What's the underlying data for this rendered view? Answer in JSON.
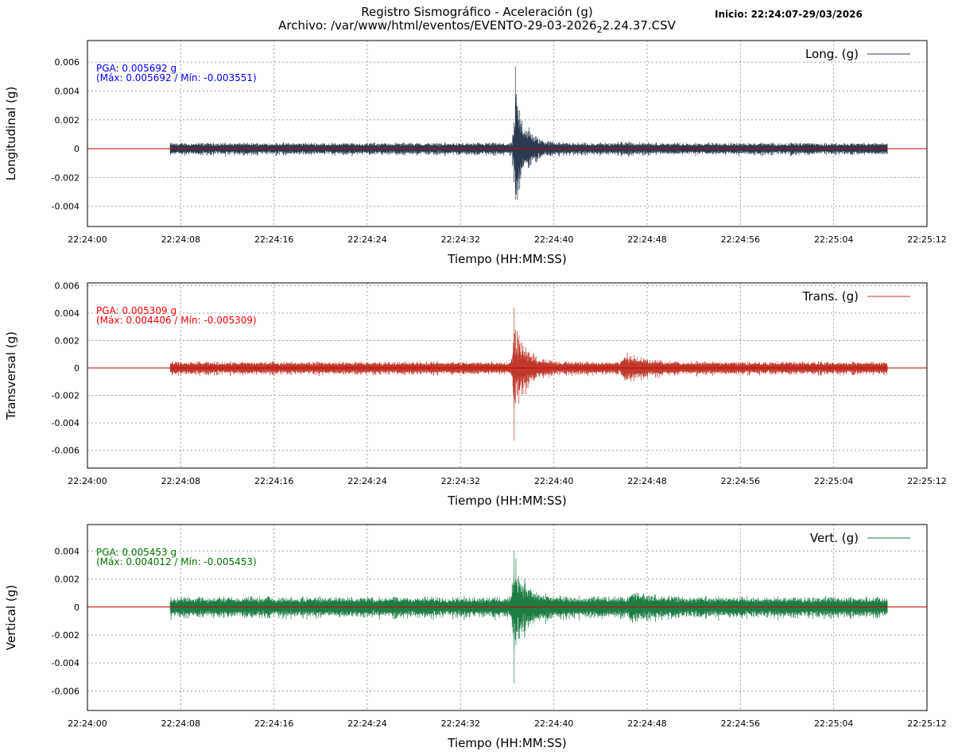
{
  "header": {
    "title": "Registro Sismográfico - Aceleración (g)",
    "subtitle_pre": "Archivo: /var/www/html/eventos/EVENTO-29-03-2026",
    "subtitle_sub": "2",
    "subtitle_post": "2.24.37.CSV",
    "start_label": "Inicio: 22:24:07-29/03/2026"
  },
  "chart_data": [
    {
      "type": "line",
      "title": "",
      "xlabel": "Tiempo (HH:MM:SS)",
      "ylabel": "Longitudinal (g)",
      "x_ticks": [
        "22:24:00",
        "22:24:08",
        "22:24:16",
        "22:24:24",
        "22:24:32",
        "22:24:40",
        "22:24:48",
        "22:24:56",
        "22:25:04",
        "22:25:12"
      ],
      "xlim": [
        0,
        72
      ],
      "ylim": [
        -0.0054,
        0.0075
      ],
      "y_ticks": [
        -0.004,
        -0.002,
        0,
        0.002,
        0.004,
        0.006
      ],
      "y_tick_labels": [
        "-0.004",
        "-0.002",
        "0",
        "0.002",
        "0.004",
        "0.006"
      ],
      "grid": true,
      "legend": "top-right",
      "series": [
        {
          "name": "Long. (g)",
          "color": "#2b3a4e",
          "x_start": 7.1,
          "x_end": 68.6,
          "baseline_amplitude": 0.00045,
          "pga": 0.005692,
          "max": 0.005692,
          "min": -0.003551,
          "events": [
            {
              "t": 36.7,
              "peak_pos": 0.005692,
              "peak_neg": -0.003551
            },
            {
              "t": 45.5,
              "peak_pos": 0.0006,
              "peak_neg": -0.0006
            }
          ]
        }
      ],
      "annotation": {
        "line1": "PGA: 0.005692 g",
        "line2": "(Máx: 0.005692 / Mín: -0.003551)",
        "color": "#0000ff"
      },
      "zero_line_color": "#cc0000"
    },
    {
      "type": "line",
      "title": "",
      "xlabel": "Tiempo (HH:MM:SS)",
      "ylabel": "Transversal (g)",
      "x_ticks": [
        "22:24:00",
        "22:24:08",
        "22:24:16",
        "22:24:24",
        "22:24:32",
        "22:24:40",
        "22:24:48",
        "22:24:56",
        "22:25:04",
        "22:25:12"
      ],
      "xlim": [
        0,
        72
      ],
      "ylim": [
        -0.0073,
        0.0062
      ],
      "y_ticks": [
        -0.006,
        -0.004,
        -0.002,
        0,
        0.002,
        0.004,
        0.006
      ],
      "y_tick_labels": [
        "-0.006",
        "-0.004",
        "-0.002",
        "0",
        "0.002",
        "0.004",
        "0.006"
      ],
      "grid": true,
      "legend": "top-right",
      "series": [
        {
          "name": "Trans. (g)",
          "color": "#c0392b",
          "x_start": 7.1,
          "x_end": 68.6,
          "baseline_amplitude": 0.0005,
          "pga": 0.005309,
          "max": 0.004406,
          "min": -0.005309,
          "events": [
            {
              "t": 36.6,
              "peak_pos": 0.004406,
              "peak_neg": -0.005309
            },
            {
              "t": 46.0,
              "peak_pos": 0.0017,
              "peak_neg": -0.0013
            }
          ]
        }
      ],
      "annotation": {
        "line1": "PGA: 0.005309 g",
        "line2": "(Máx: 0.004406 / Mín: -0.005309)",
        "color": "#ff0000"
      },
      "zero_line_color": "#cc0000"
    },
    {
      "type": "line",
      "title": "",
      "xlabel": "Tiempo (HH:MM:SS)",
      "ylabel": "Vertical (g)",
      "x_ticks": [
        "22:24:00",
        "22:24:08",
        "22:24:16",
        "22:24:24",
        "22:24:32",
        "22:24:40",
        "22:24:48",
        "22:24:56",
        "22:25:04",
        "22:25:12"
      ],
      "xlim": [
        0,
        72
      ],
      "ylim": [
        -0.0074,
        0.0059
      ],
      "y_ticks": [
        -0.006,
        -0.004,
        -0.002,
        0,
        0.002,
        0.004
      ],
      "y_tick_labels": [
        "-0.006",
        "-0.004",
        "-0.002",
        "0",
        "0.002",
        "0.004"
      ],
      "grid": true,
      "legend": "top-right",
      "series": [
        {
          "name": "Vert. (g)",
          "color": "#1e7d45",
          "x_start": 7.1,
          "x_end": 68.6,
          "baseline_amplitude": 0.0008,
          "pga": 0.005453,
          "max": 0.004012,
          "min": -0.005453,
          "events": [
            {
              "t": 36.6,
              "peak_pos": 0.004012,
              "peak_neg": -0.005453
            },
            {
              "t": 46.5,
              "peak_pos": 0.0015,
              "peak_neg": -0.0016
            }
          ]
        }
      ],
      "annotation": {
        "line1": "PGA: 0.005453 g",
        "line2": "(Máx: 0.004012 / Mín: -0.005453)",
        "color": "#007000"
      },
      "zero_line_color": "#cc0000"
    }
  ]
}
